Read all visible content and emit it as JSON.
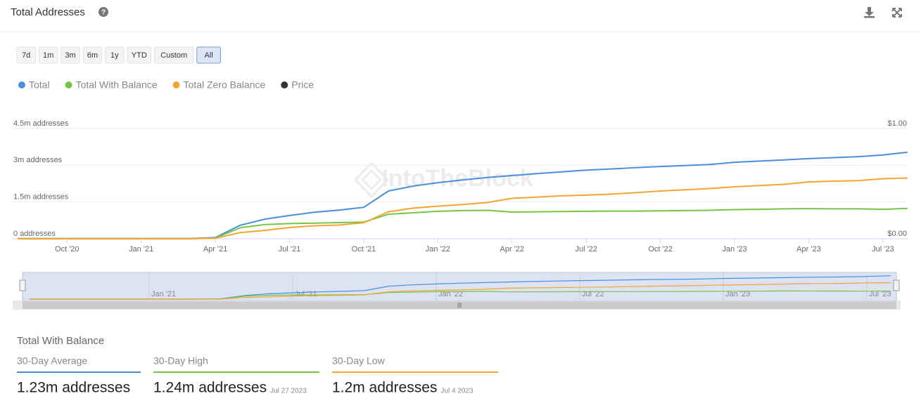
{
  "header": {
    "title": "Total Addresses"
  },
  "range_buttons": [
    "7d",
    "1m",
    "3m",
    "6m",
    "1y",
    "YTD",
    "Custom",
    "All"
  ],
  "selected_range": "All",
  "chart_data": {
    "type": "line",
    "watermark": "IntoTheBlock",
    "x": [
      "2020-08",
      "2020-09",
      "2020-10",
      "2020-11",
      "2020-12",
      "2021-01",
      "2021-02",
      "2021-03",
      "2021-04",
      "2021-05",
      "2021-06",
      "2021-07",
      "2021-08",
      "2021-09",
      "2021-10",
      "2021-11",
      "2021-12",
      "2022-01",
      "2022-02",
      "2022-03",
      "2022-04",
      "2022-05",
      "2022-06",
      "2022-07",
      "2022-08",
      "2022-09",
      "2022-10",
      "2022-11",
      "2022-12",
      "2023-01",
      "2023-02",
      "2023-03",
      "2023-04",
      "2023-05",
      "2023-06",
      "2023-07",
      "2023-08"
    ],
    "xlim": [
      "2020-08",
      "2023-08"
    ],
    "xticks": [
      {
        "value": "2020-10",
        "label": "Oct '20"
      },
      {
        "value": "2021-01",
        "label": "Jan '21"
      },
      {
        "value": "2021-04",
        "label": "Apr '21"
      },
      {
        "value": "2021-07",
        "label": "Jul '21"
      },
      {
        "value": "2021-10",
        "label": "Oct '21"
      },
      {
        "value": "2022-01",
        "label": "Jan '22"
      },
      {
        "value": "2022-04",
        "label": "Apr '22"
      },
      {
        "value": "2022-07",
        "label": "Jul '22"
      },
      {
        "value": "2022-10",
        "label": "Oct '22"
      },
      {
        "value": "2023-01",
        "label": "Jan '23"
      },
      {
        "value": "2023-04",
        "label": "Apr '23"
      },
      {
        "value": "2023-07",
        "label": "Jul '23"
      }
    ],
    "ylim": [
      0,
      4500000
    ],
    "yticks": [
      {
        "value": 0,
        "label": "0 addresses"
      },
      {
        "value": 1500000,
        "label": "1.5m addresses"
      },
      {
        "value": 3000000,
        "label": "3m addresses"
      },
      {
        "value": 4500000,
        "label": "4.5m addresses"
      }
    ],
    "y2lim": [
      0,
      1
    ],
    "y2ticks": [
      {
        "value": 0,
        "label": "$0.00"
      },
      {
        "value": 1,
        "label": "$1.00"
      }
    ],
    "grid": true,
    "series": [
      {
        "name": "Total",
        "color": "#4a8fdc",
        "values": [
          10000,
          10000,
          10000,
          10000,
          10000,
          10000,
          10000,
          10000,
          50000,
          550000,
          800000,
          950000,
          1080000,
          1170000,
          1280000,
          1950000,
          2150000,
          2290000,
          2400000,
          2500000,
          2580000,
          2660000,
          2730000,
          2800000,
          2850000,
          2900000,
          2950000,
          2990000,
          3030000,
          3120000,
          3170000,
          3220000,
          3270000,
          3310000,
          3350000,
          3420000,
          3530000
        ]
      },
      {
        "name": "Total With Balance",
        "color": "#78c44a",
        "values": [
          10000,
          10000,
          10000,
          10000,
          10000,
          10000,
          10000,
          10000,
          30000,
          450000,
          580000,
          620000,
          640000,
          660000,
          680000,
          1000000,
          1060000,
          1120000,
          1150000,
          1160000,
          1090000,
          1100000,
          1110000,
          1120000,
          1130000,
          1130000,
          1140000,
          1150000,
          1160000,
          1190000,
          1200000,
          1220000,
          1230000,
          1220000,
          1220000,
          1200000,
          1240000
        ]
      },
      {
        "name": "Total Zero Balance",
        "color": "#f2a630",
        "values": [
          0,
          0,
          0,
          0,
          0,
          0,
          0,
          0,
          20000,
          250000,
          340000,
          460000,
          530000,
          560000,
          650000,
          1100000,
          1250000,
          1330000,
          1400000,
          1480000,
          1650000,
          1700000,
          1750000,
          1780000,
          1820000,
          1880000,
          1950000,
          2000000,
          2050000,
          2120000,
          2170000,
          2220000,
          2320000,
          2350000,
          2370000,
          2450000,
          2480000
        ]
      },
      {
        "name": "Price",
        "color": "#333333",
        "axis": "y2",
        "values": [
          null,
          null,
          null,
          null,
          null,
          null,
          null,
          null,
          null,
          null,
          null,
          null,
          null,
          null,
          null,
          null,
          null,
          null,
          null,
          null,
          null,
          null,
          null,
          null,
          null,
          null,
          null,
          null,
          null,
          null,
          null,
          null,
          null,
          null,
          null,
          null,
          null
        ]
      }
    ]
  },
  "navigator": {
    "xticks": [
      {
        "value": "2021-01",
        "label": "Jan '21"
      },
      {
        "value": "2021-07",
        "label": "Jul '21"
      },
      {
        "value": "2022-01",
        "label": "Jan '22"
      },
      {
        "value": "2022-07",
        "label": "Jul '22"
      },
      {
        "value": "2023-01",
        "label": "Jan '23"
      },
      {
        "value": "2023-07",
        "label": "Jul '23"
      }
    ]
  },
  "summary": {
    "title": "Total With Balance",
    "stats": [
      {
        "label": "30-Day Average",
        "value": "1.23m addresses",
        "color": "#4a8fdc"
      },
      {
        "label": "30-Day High",
        "value": "1.24m addresses",
        "date": "Jul 27 2023",
        "color": "#78c44a"
      },
      {
        "label": "30-Day Low",
        "value": "1.2m addresses",
        "date": "Jul 4 2023",
        "color": "#f2a630"
      }
    ]
  }
}
